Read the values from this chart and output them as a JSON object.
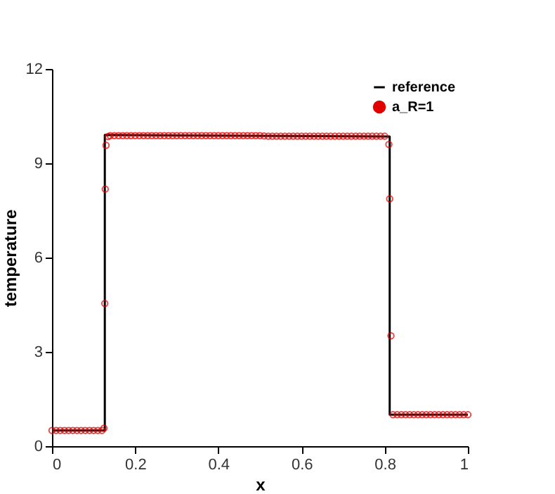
{
  "chart_data": {
    "type": "line",
    "xlabel": "x",
    "ylabel": "temperature",
    "xlim": [
      0,
      1
    ],
    "ylim": [
      0,
      12
    ],
    "xticks": [
      0,
      0.2,
      0.4,
      0.6,
      0.8,
      1
    ],
    "yticks": [
      0,
      3,
      6,
      9,
      12
    ],
    "grid": false,
    "legend": "top right",
    "series": [
      {
        "name": "reference",
        "type": "line",
        "color": "#000000",
        "marker": "none",
        "line_style": "solid",
        "x": [
          0,
          0.127,
          0.127,
          0.812,
          0.812,
          1
        ],
        "values": [
          0.5,
          0.5,
          9.9,
          9.85,
          1.0,
          1.0
        ]
      },
      {
        "name": "a_R=1",
        "type": "scatter",
        "color": "#e00000",
        "marker": "circle",
        "x": [
          0,
          0.01,
          0.02,
          0.03,
          0.04,
          0.05,
          0.06,
          0.07,
          0.08,
          0.09,
          0.1,
          0.11,
          0.12,
          0.125,
          0.127,
          0.128,
          0.13,
          0.135,
          0.14,
          0.15,
          0.16,
          0.17,
          0.18,
          0.19,
          0.2,
          0.21,
          0.22,
          0.23,
          0.24,
          0.25,
          0.26,
          0.27,
          0.28,
          0.29,
          0.3,
          0.31,
          0.32,
          0.33,
          0.34,
          0.35,
          0.36,
          0.37,
          0.38,
          0.39,
          0.4,
          0.41,
          0.42,
          0.43,
          0.44,
          0.45,
          0.46,
          0.47,
          0.48,
          0.49,
          0.5,
          0.51,
          0.52,
          0.53,
          0.54,
          0.55,
          0.56,
          0.57,
          0.58,
          0.59,
          0.6,
          0.61,
          0.62,
          0.63,
          0.64,
          0.65,
          0.66,
          0.67,
          0.68,
          0.69,
          0.7,
          0.71,
          0.72,
          0.73,
          0.74,
          0.75,
          0.76,
          0.77,
          0.78,
          0.79,
          0.8,
          0.81,
          0.812,
          0.815,
          0.82,
          0.83,
          0.84,
          0.85,
          0.86,
          0.87,
          0.88,
          0.89,
          0.9,
          0.91,
          0.92,
          0.93,
          0.94,
          0.95,
          0.96,
          0.97,
          0.98,
          0.99,
          1.0
        ],
        "values": [
          0.5,
          0.5,
          0.5,
          0.5,
          0.5,
          0.5,
          0.5,
          0.5,
          0.5,
          0.5,
          0.5,
          0.5,
          0.5,
          0.57,
          4.54,
          8.18,
          9.57,
          9.85,
          9.88,
          9.88,
          9.88,
          9.88,
          9.88,
          9.88,
          9.88,
          9.88,
          9.88,
          9.88,
          9.88,
          9.88,
          9.88,
          9.88,
          9.88,
          9.88,
          9.88,
          9.88,
          9.88,
          9.88,
          9.88,
          9.88,
          9.88,
          9.88,
          9.88,
          9.88,
          9.88,
          9.88,
          9.88,
          9.88,
          9.88,
          9.88,
          9.88,
          9.88,
          9.88,
          9.88,
          9.88,
          9.87,
          9.86,
          9.86,
          9.86,
          9.86,
          9.86,
          9.86,
          9.86,
          9.86,
          9.86,
          9.86,
          9.86,
          9.86,
          9.86,
          9.86,
          9.86,
          9.86,
          9.86,
          9.86,
          9.86,
          9.86,
          9.86,
          9.86,
          9.86,
          9.86,
          9.86,
          9.86,
          9.86,
          9.86,
          9.86,
          9.6,
          7.87,
          3.51,
          1.0,
          1.0,
          1.0,
          1.0,
          1.0,
          1.0,
          1.0,
          1.0,
          1.0,
          1.0,
          1.0,
          1.0,
          1.0,
          1.0,
          1.0,
          1.0,
          1.0,
          1.0,
          1.0
        ]
      }
    ]
  }
}
